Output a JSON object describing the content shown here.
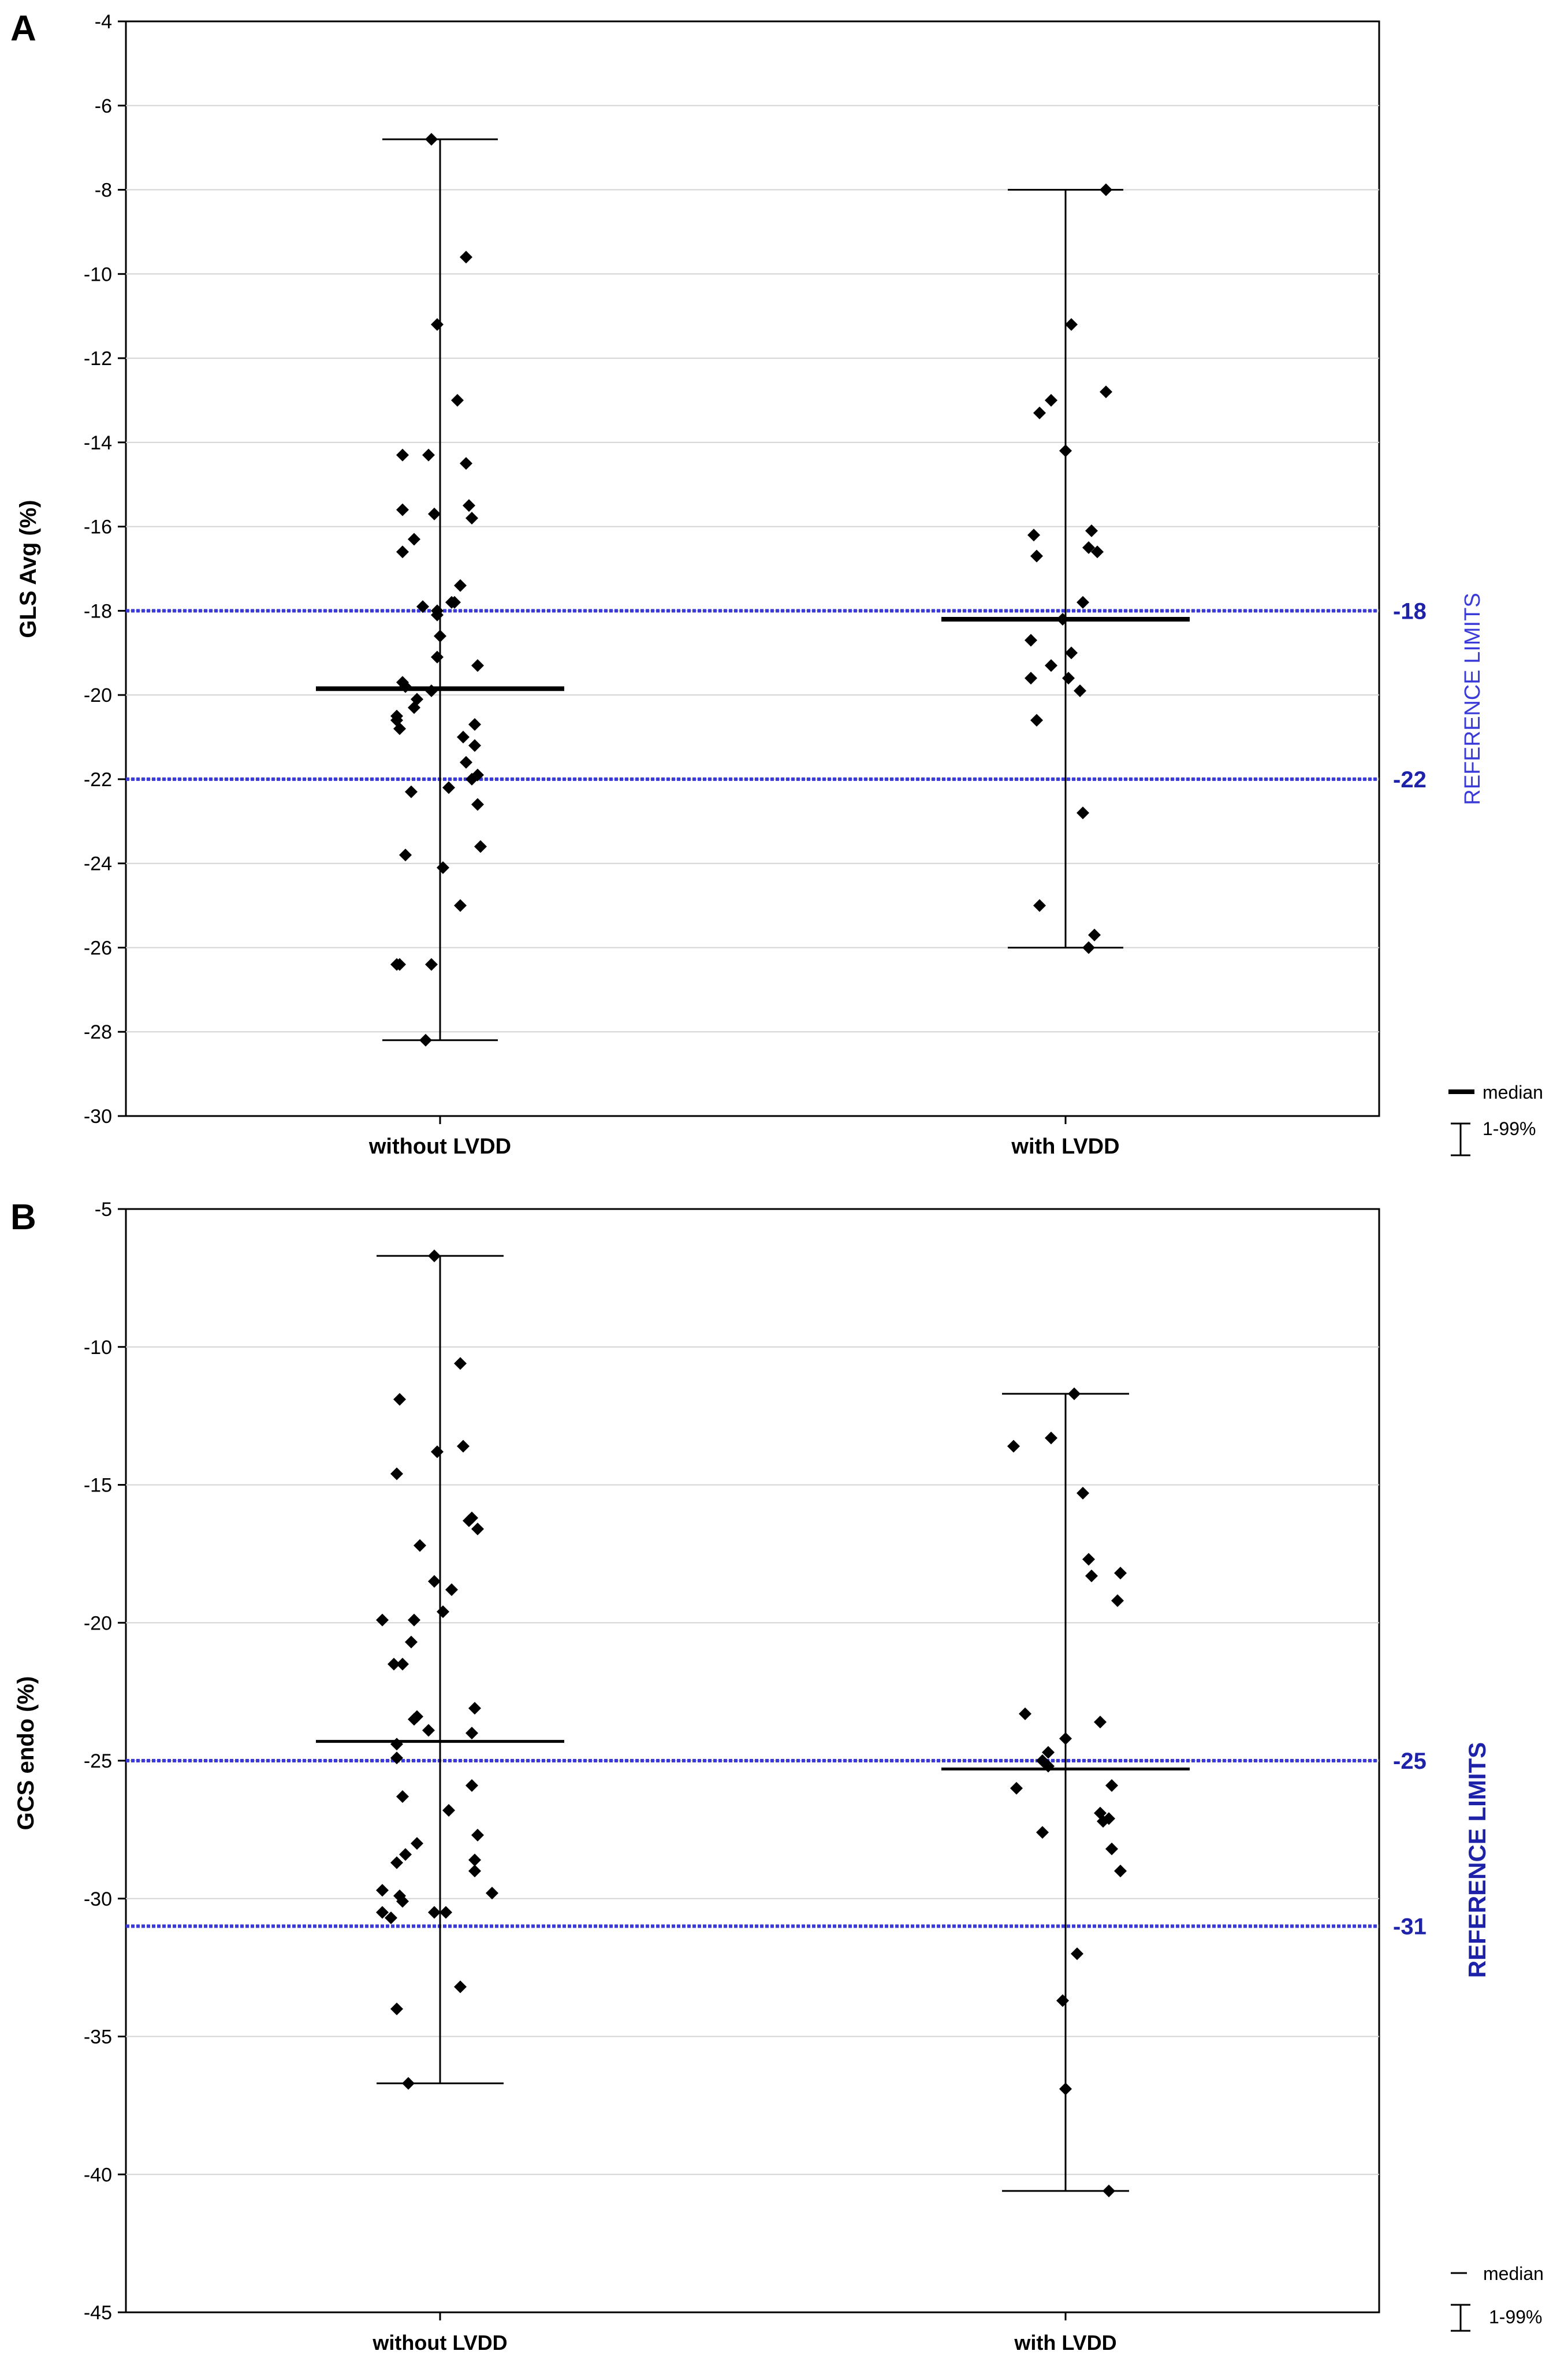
{
  "chart_data": [
    {
      "panel": "A",
      "type": "scatter",
      "title": "",
      "xlabel": "",
      "ylabel": "GLS Avg (%)",
      "ylim": [
        -30,
        -4
      ],
      "yticks": [
        -4,
        -6,
        -8,
        -10,
        -12,
        -14,
        -16,
        -18,
        -20,
        -22,
        -24,
        -26,
        -28,
        -30
      ],
      "grid": true,
      "categories": [
        "without LVDD",
        "with LVDD"
      ],
      "reference_lines": [
        -18,
        -22
      ],
      "reference_label": "REFERENCE LIMITS",
      "groups": [
        {
          "name": "without LVDD",
          "median": -19.85,
          "range": [
            -28.2,
            -6.8
          ],
          "points": [
            {
              "dx": -0.03,
              "y": -6.8
            },
            {
              "dx": 0.09,
              "y": -9.6
            },
            {
              "dx": -0.01,
              "y": -11.2
            },
            {
              "dx": 0.06,
              "y": -13.0
            },
            {
              "dx": -0.13,
              "y": -14.3
            },
            {
              "dx": -0.04,
              "y": -14.3
            },
            {
              "dx": 0.09,
              "y": -14.5
            },
            {
              "dx": -0.13,
              "y": -15.6
            },
            {
              "dx": 0.1,
              "y": -15.5
            },
            {
              "dx": -0.02,
              "y": -15.7
            },
            {
              "dx": 0.11,
              "y": -15.8
            },
            {
              "dx": -0.09,
              "y": -16.3
            },
            {
              "dx": -0.13,
              "y": -16.6
            },
            {
              "dx": 0.07,
              "y": -17.4
            },
            {
              "dx": -0.06,
              "y": -17.9
            },
            {
              "dx": 0.05,
              "y": -17.8
            },
            {
              "dx": 0.04,
              "y": -17.8
            },
            {
              "dx": -0.01,
              "y": -18.0
            },
            {
              "dx": -0.01,
              "y": -18.1
            },
            {
              "dx": 0.0,
              "y": -18.6
            },
            {
              "dx": -0.01,
              "y": -19.1
            },
            {
              "dx": 0.13,
              "y": -19.3
            },
            {
              "dx": -0.12,
              "y": -19.8
            },
            {
              "dx": -0.13,
              "y": -19.7
            },
            {
              "dx": -0.03,
              "y": -19.9
            },
            {
              "dx": -0.08,
              "y": -20.1
            },
            {
              "dx": -0.09,
              "y": -20.3
            },
            {
              "dx": -0.15,
              "y": -20.5
            },
            {
              "dx": -0.14,
              "y": -20.8
            },
            {
              "dx": -0.15,
              "y": -20.6
            },
            {
              "dx": 0.12,
              "y": -20.7
            },
            {
              "dx": 0.08,
              "y": -21.0
            },
            {
              "dx": 0.12,
              "y": -21.2
            },
            {
              "dx": 0.09,
              "y": -21.6
            },
            {
              "dx": 0.11,
              "y": -22.0
            },
            {
              "dx": 0.13,
              "y": -21.9
            },
            {
              "dx": 0.03,
              "y": -22.2
            },
            {
              "dx": -0.1,
              "y": -22.3
            },
            {
              "dx": 0.13,
              "y": -22.6
            },
            {
              "dx": 0.14,
              "y": -23.6
            },
            {
              "dx": -0.12,
              "y": -23.8
            },
            {
              "dx": 0.01,
              "y": -24.1
            },
            {
              "dx": 0.07,
              "y": -25.0
            },
            {
              "dx": -0.15,
              "y": -26.4
            },
            {
              "dx": -0.14,
              "y": -26.4
            },
            {
              "dx": -0.03,
              "y": -26.4
            },
            {
              "dx": -0.05,
              "y": -28.2
            }
          ]
        },
        {
          "name": "with LVDD",
          "median": -18.2,
          "range": [
            -26.0,
            -8.0
          ],
          "points": [
            {
              "dx": 0.14,
              "y": -8.0
            },
            {
              "dx": 0.02,
              "y": -11.2
            },
            {
              "dx": 0.14,
              "y": -12.8
            },
            {
              "dx": -0.05,
              "y": -13.0
            },
            {
              "dx": -0.09,
              "y": -13.3
            },
            {
              "dx": 0.0,
              "y": -14.2
            },
            {
              "dx": -0.11,
              "y": -16.2
            },
            {
              "dx": 0.09,
              "y": -16.1
            },
            {
              "dx": 0.08,
              "y": -16.5
            },
            {
              "dx": 0.11,
              "y": -16.6
            },
            {
              "dx": -0.1,
              "y": -16.7
            },
            {
              "dx": 0.06,
              "y": -17.8
            },
            {
              "dx": -0.01,
              "y": -18.2
            },
            {
              "dx": -0.12,
              "y": -18.7
            },
            {
              "dx": 0.02,
              "y": -19.0
            },
            {
              "dx": -0.05,
              "y": -19.3
            },
            {
              "dx": -0.12,
              "y": -19.6
            },
            {
              "dx": 0.01,
              "y": -19.6
            },
            {
              "dx": 0.05,
              "y": -19.9
            },
            {
              "dx": -0.1,
              "y": -20.6
            },
            {
              "dx": 0.06,
              "y": -22.8
            },
            {
              "dx": -0.09,
              "y": -25.0
            },
            {
              "dx": 0.1,
              "y": -25.7
            },
            {
              "dx": 0.08,
              "y": -26.0
            }
          ]
        }
      ],
      "legend": {
        "median_label": "median",
        "range_label": "1-99%",
        "position": "bottom-right"
      }
    },
    {
      "panel": "B",
      "type": "scatter",
      "title": "",
      "xlabel": "",
      "ylabel": "GCS endo (%)",
      "ylim": [
        -45,
        -5
      ],
      "yticks": [
        -5,
        -10,
        -15,
        -20,
        -25,
        -30,
        -35,
        -40,
        -45
      ],
      "grid": true,
      "categories": [
        "without LVDD",
        "with LVDD"
      ],
      "reference_lines": [
        -25,
        -31
      ],
      "reference_label": "REFERENCE LIMITS",
      "groups": [
        {
          "name": "without LVDD",
          "median": -24.3,
          "range": [
            -36.7,
            -6.7
          ],
          "points": [
            {
              "dx": -0.02,
              "y": -6.7
            },
            {
              "dx": 0.07,
              "y": -10.6
            },
            {
              "dx": -0.14,
              "y": -11.9
            },
            {
              "dx": -0.01,
              "y": -13.8
            },
            {
              "dx": 0.08,
              "y": -13.6
            },
            {
              "dx": -0.15,
              "y": -14.6
            },
            {
              "dx": 0.11,
              "y": -16.2
            },
            {
              "dx": 0.1,
              "y": -16.3
            },
            {
              "dx": 0.13,
              "y": -16.6
            },
            {
              "dx": -0.07,
              "y": -17.2
            },
            {
              "dx": -0.02,
              "y": -18.5
            },
            {
              "dx": 0.04,
              "y": -18.8
            },
            {
              "dx": 0.01,
              "y": -19.6
            },
            {
              "dx": -0.2,
              "y": -19.9
            },
            {
              "dx": -0.09,
              "y": -19.9
            },
            {
              "dx": -0.1,
              "y": -20.7
            },
            {
              "dx": -0.16,
              "y": -21.5
            },
            {
              "dx": -0.13,
              "y": -21.5
            },
            {
              "dx": 0.12,
              "y": -23.1
            },
            {
              "dx": -0.08,
              "y": -23.4
            },
            {
              "dx": -0.09,
              "y": -23.5
            },
            {
              "dx": -0.04,
              "y": -23.9
            },
            {
              "dx": 0.11,
              "y": -24.0
            },
            {
              "dx": -0.15,
              "y": -24.4
            },
            {
              "dx": -0.15,
              "y": -24.9
            },
            {
              "dx": 0.11,
              "y": -25.9
            },
            {
              "dx": -0.13,
              "y": -26.3
            },
            {
              "dx": 0.03,
              "y": -26.8
            },
            {
              "dx": 0.13,
              "y": -27.7
            },
            {
              "dx": -0.08,
              "y": -28.0
            },
            {
              "dx": -0.12,
              "y": -28.4
            },
            {
              "dx": 0.12,
              "y": -28.6
            },
            {
              "dx": -0.15,
              "y": -28.7
            },
            {
              "dx": 0.12,
              "y": -29.0
            },
            {
              "dx": -0.2,
              "y": -29.7
            },
            {
              "dx": 0.18,
              "y": -29.8
            },
            {
              "dx": -0.14,
              "y": -29.9
            },
            {
              "dx": -0.13,
              "y": -30.1
            },
            {
              "dx": -0.2,
              "y": -30.5
            },
            {
              "dx": -0.02,
              "y": -30.5
            },
            {
              "dx": 0.02,
              "y": -30.5
            },
            {
              "dx": -0.17,
              "y": -30.7
            },
            {
              "dx": 0.07,
              "y": -33.2
            },
            {
              "dx": -0.15,
              "y": -34.0
            },
            {
              "dx": -0.11,
              "y": -36.7
            }
          ]
        },
        {
          "name": "with LVDD",
          "median": -25.3,
          "range": [
            -40.6,
            -11.7
          ],
          "points": [
            {
              "dx": 0.03,
              "y": -11.7
            },
            {
              "dx": -0.05,
              "y": -13.3
            },
            {
              "dx": -0.18,
              "y": -13.6
            },
            {
              "dx": 0.06,
              "y": -15.3
            },
            {
              "dx": 0.08,
              "y": -17.7
            },
            {
              "dx": 0.09,
              "y": -18.3
            },
            {
              "dx": 0.19,
              "y": -18.2
            },
            {
              "dx": 0.18,
              "y": -19.2
            },
            {
              "dx": -0.14,
              "y": -23.3
            },
            {
              "dx": 0.12,
              "y": -23.6
            },
            {
              "dx": 0.0,
              "y": -24.2
            },
            {
              "dx": -0.06,
              "y": -24.7
            },
            {
              "dx": -0.08,
              "y": -25.0
            },
            {
              "dx": -0.06,
              "y": -25.2
            },
            {
              "dx": 0.16,
              "y": -25.9
            },
            {
              "dx": -0.17,
              "y": -26.0
            },
            {
              "dx": 0.12,
              "y": -26.9
            },
            {
              "dx": 0.15,
              "y": -27.1
            },
            {
              "dx": 0.13,
              "y": -27.2
            },
            {
              "dx": -0.08,
              "y": -27.6
            },
            {
              "dx": 0.16,
              "y": -28.2
            },
            {
              "dx": 0.19,
              "y": -29.0
            },
            {
              "dx": 0.04,
              "y": -32.0
            },
            {
              "dx": -0.01,
              "y": -33.7
            },
            {
              "dx": 0.0,
              "y": -36.9
            },
            {
              "dx": 0.15,
              "y": -40.6
            }
          ]
        }
      ],
      "legend": {
        "median_label": "median",
        "range_label": "1-99%",
        "position": "bottom-right"
      }
    }
  ],
  "colors": {
    "axis": "#000000",
    "grid": "#d4d4d4",
    "reference": "#3a3ad8",
    "reference_text": "#1e22a8"
  }
}
